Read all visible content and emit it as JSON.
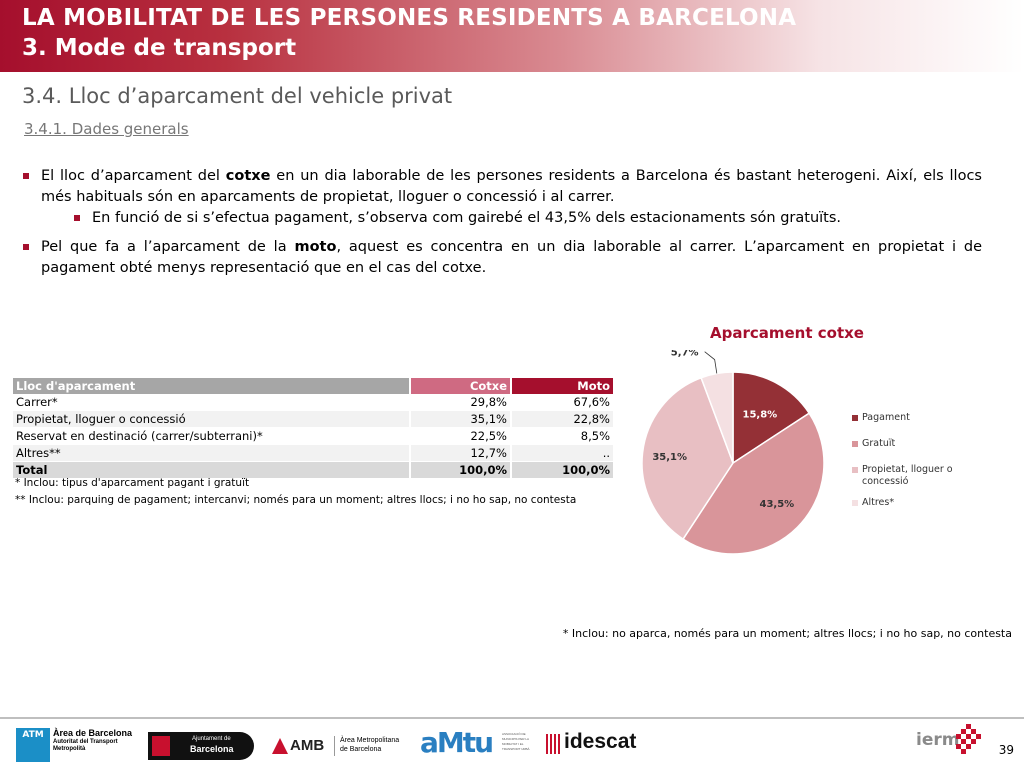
{
  "header": {
    "title": "LA MOBILITAT DE LES PERSONES RESIDENTS A BARCELONA",
    "subtitle": "3. Mode de transport"
  },
  "section_title": "3.4. Lloc d’aparcament del vehicle privat",
  "subsection": "3.4.1. Dades generals",
  "bullets": {
    "b1_pre": "El lloc d’aparcament del ",
    "b1_kw": "cotxe",
    "b1_post": " en un dia laborable de les persones residents a Barcelona és bastant heterogeni. Així, els llocs més habituals són en aparcaments de propietat, lloguer o concessió i al carrer.",
    "b1_sub": "En funció de si s’efectua pagament, s’observa com gairebé el 43,5% dels estacionaments són gratuïts.",
    "b2_pre": "Pel que fa a l’aparcament de la ",
    "b2_kw": "moto",
    "b2_post": ", aquest es concentra en un dia laborable al carrer. L’aparcament en propietat i de pagament obté menys representació que en el cas del cotxe."
  },
  "table": {
    "headers": [
      "Lloc d'aparcament",
      "Cotxe",
      "Moto"
    ],
    "rows": [
      [
        "Carrer*",
        "29,8%",
        "67,6%"
      ],
      [
        "Propietat, lloguer o concessió",
        "35,1%",
        "22,8%"
      ],
      [
        "Reservat en destinació (carrer/subterrani)*",
        "22,5%",
        "8,5%"
      ],
      [
        "Altres**",
        "12,7%",
        ".."
      ]
    ],
    "total": [
      "Total",
      "100,0%",
      "100,0%"
    ]
  },
  "notes": {
    "n1": "* Inclou: tipus d'aparcament pagant i gratuït",
    "n2": "** Inclou: parquing de pagament; intercanvi; només para un moment; altres llocs; i no ho sap, no contesta"
  },
  "chart_data": {
    "type": "pie",
    "title": "Aparcament cotxe",
    "slices": [
      {
        "label": "Pagament",
        "value": 15.8,
        "display": "15,8%",
        "color": "#943036"
      },
      {
        "label": "Gratuït",
        "value": 43.5,
        "display": "43,5%",
        "color": "#d9959a"
      },
      {
        "label": "Propietat, lloguer o concessió",
        "value": 35.1,
        "display": "35,1%",
        "color": "#e8bfc3"
      },
      {
        "label": "Altres*",
        "value": 5.7,
        "display": "5,7%",
        "color": "#f4e0e2"
      }
    ],
    "legend_position": "right"
  },
  "bottom_note": "* Inclou: no aparca, només para un moment; altres llocs; i no ho sap, no contesta",
  "footer": {
    "atm_badge": "ATM",
    "atm_line1": "Àrea de Barcelona",
    "atm_line2": "Autoritat del Transport",
    "atm_line3": "Metropolità",
    "ajuntament_small": "Ajuntament de",
    "ajuntament_big": "Barcelona",
    "amb": "AMB",
    "amb_line1": "Àrea Metropolitana",
    "amb_line2": "de Barcelona",
    "amtu": "aMtu",
    "amtu_small": "ASSOCIACIÓ DE MUNICIPIS PER LA MOBILITAT I EL TRANSPORT URBÀ",
    "idescat": "idescat",
    "iermb": "ierm",
    "page": "39"
  }
}
